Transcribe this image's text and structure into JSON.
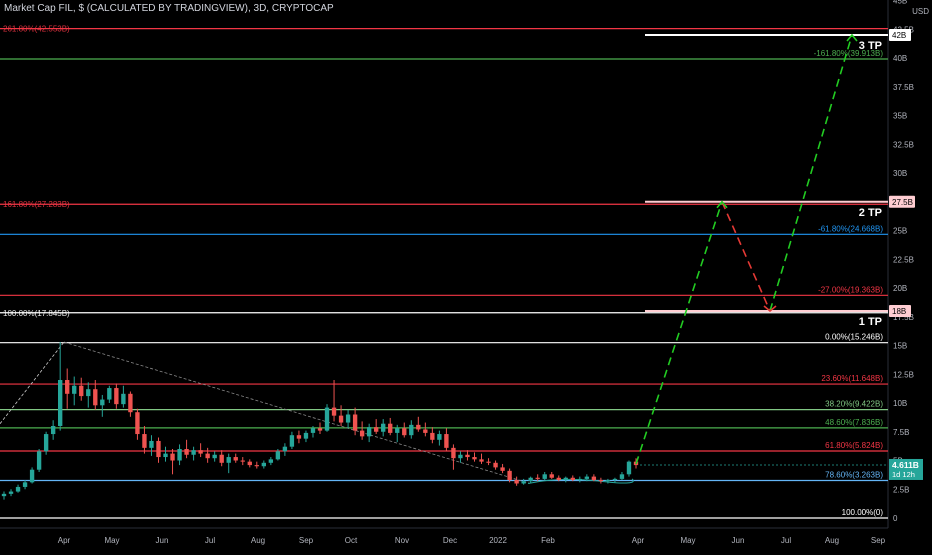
{
  "header": {
    "title": "Market Cap FIL, $ (CALCULATED BY TRADINGVIEW), 3D, CRYPTOCAP",
    "currency": "USD"
  },
  "colors": {
    "bg": "#000000",
    "up": "#26a69a",
    "down": "#ef5350",
    "green_path": "#22cc22",
    "red_path": "#e53935",
    "white": "#ffffff",
    "axis_text": "#b2b5be",
    "price_badge": "#26a69a"
  },
  "chart_data": {
    "type": "candlestick",
    "y_axis": {
      "unit": "B",
      "ticks": [
        0,
        2.5,
        5,
        7.5,
        10,
        12.5,
        15,
        17.5,
        20,
        22.5,
        25,
        27.5,
        30,
        32.5,
        35,
        37.5,
        40,
        42.5,
        45
      ],
      "labels": [
        "0",
        "2.5B",
        "5B",
        "7.5B",
        "10B",
        "12.5B",
        "15B",
        "17.5B",
        "20B",
        "22.5B",
        "25B",
        "27.5B",
        "30B",
        "32.5B",
        "35B",
        "37.5B",
        "40B",
        "42.5B",
        "45B"
      ]
    },
    "x_axis": {
      "labels": [
        "Apr",
        "May",
        "Jun",
        "Jul",
        "Aug",
        "Sep",
        "Oct",
        "Nov",
        "Dec",
        "2022",
        "Feb",
        "Apr",
        "May",
        "Jun",
        "Jul",
        "Aug",
        "Sep"
      ]
    },
    "candles": [
      [
        1.9,
        2.3,
        1.6,
        2.1
      ],
      [
        2.1,
        2.5,
        1.9,
        2.3
      ],
      [
        2.3,
        2.9,
        2.2,
        2.7
      ],
      [
        2.7,
        3.3,
        2.5,
        3.1
      ],
      [
        3.1,
        4.4,
        3.0,
        4.2
      ],
      [
        4.2,
        6.0,
        4.0,
        5.8
      ],
      [
        5.8,
        7.5,
        5.5,
        7.3
      ],
      [
        7.3,
        8.5,
        6.8,
        8.0
      ],
      [
        8.0,
        15.3,
        7.6,
        12.0
      ],
      [
        12.0,
        13.0,
        9.5,
        10.8
      ],
      [
        10.8,
        12.3,
        9.8,
        11.5
      ],
      [
        11.5,
        12.2,
        10.2,
        10.6
      ],
      [
        10.6,
        11.8,
        9.6,
        11.2
      ],
      [
        11.2,
        12.0,
        9.4,
        9.8
      ],
      [
        9.8,
        10.7,
        8.8,
        10.3
      ],
      [
        10.3,
        11.5,
        10.0,
        11.3
      ],
      [
        11.3,
        11.7,
        9.5,
        9.9
      ],
      [
        9.9,
        11.5,
        9.6,
        10.8
      ],
      [
        10.8,
        11.0,
        8.8,
        9.2
      ],
      [
        9.2,
        9.5,
        6.8,
        7.3
      ],
      [
        7.3,
        8.0,
        5.6,
        6.1
      ],
      [
        6.1,
        7.2,
        5.4,
        6.7
      ],
      [
        6.7,
        7.0,
        4.8,
        5.3
      ],
      [
        5.3,
        6.2,
        4.9,
        5.6
      ],
      [
        5.6,
        6.0,
        3.8,
        5.0
      ],
      [
        5.0,
        6.4,
        4.6,
        6.0
      ],
      [
        6.0,
        6.8,
        5.2,
        5.5
      ],
      [
        5.5,
        6.2,
        5.0,
        5.9
      ],
      [
        5.9,
        6.5,
        5.3,
        5.6
      ],
      [
        5.6,
        6.1,
        4.8,
        5.2
      ],
      [
        5.2,
        5.8,
        4.9,
        5.5
      ],
      [
        5.5,
        5.9,
        4.5,
        4.8
      ],
      [
        4.8,
        5.6,
        3.9,
        5.3
      ],
      [
        5.3,
        5.6,
        4.8,
        5.0
      ],
      [
        5.0,
        5.3,
        4.6,
        4.9
      ],
      [
        4.9,
        5.1,
        4.4,
        4.6
      ],
      [
        4.6,
        4.9,
        4.3,
        4.5
      ],
      [
        4.5,
        5.0,
        4.3,
        4.8
      ],
      [
        4.8,
        5.3,
        4.6,
        5.1
      ],
      [
        5.1,
        6.0,
        5.0,
        5.8
      ],
      [
        5.8,
        6.5,
        5.4,
        6.2
      ],
      [
        6.2,
        7.5,
        6.0,
        7.2
      ],
      [
        7.2,
        7.6,
        6.5,
        6.9
      ],
      [
        6.9,
        7.6,
        6.6,
        7.4
      ],
      [
        7.4,
        8.0,
        7.0,
        7.8
      ],
      [
        7.8,
        8.3,
        7.3,
        7.6
      ],
      [
        7.6,
        9.9,
        7.5,
        9.6
      ],
      [
        9.6,
        12.0,
        8.4,
        8.9
      ],
      [
        8.9,
        9.8,
        8.0,
        8.3
      ],
      [
        8.3,
        9.4,
        7.8,
        9.0
      ],
      [
        9.0,
        9.6,
        7.2,
        7.6
      ],
      [
        7.6,
        8.4,
        6.8,
        7.1
      ],
      [
        7.1,
        8.2,
        6.6,
        7.9
      ],
      [
        7.9,
        8.6,
        7.3,
        7.5
      ],
      [
        7.5,
        8.6,
        7.1,
        8.2
      ],
      [
        8.2,
        8.7,
        7.2,
        7.4
      ],
      [
        7.4,
        8.1,
        6.6,
        7.8
      ],
      [
        7.8,
        8.3,
        7.0,
        7.2
      ],
      [
        7.2,
        8.5,
        6.9,
        8.1
      ],
      [
        8.1,
        8.8,
        7.5,
        7.7
      ],
      [
        7.7,
        8.3,
        7.1,
        7.4
      ],
      [
        7.4,
        7.9,
        6.5,
        6.8
      ],
      [
        6.8,
        7.6,
        6.3,
        7.3
      ],
      [
        7.3,
        7.8,
        5.8,
        6.1
      ],
      [
        6.1,
        6.4,
        4.2,
        5.2
      ],
      [
        5.2,
        5.8,
        4.8,
        5.5
      ],
      [
        5.5,
        5.9,
        5.0,
        5.3
      ],
      [
        5.3,
        5.7,
        4.9,
        5.1
      ],
      [
        5.1,
        5.6,
        4.7,
        4.9
      ],
      [
        4.9,
        5.2,
        4.6,
        4.8
      ],
      [
        4.8,
        5.0,
        4.2,
        4.4
      ],
      [
        4.4,
        4.7,
        3.9,
        4.1
      ],
      [
        4.1,
        4.3,
        3.1,
        3.3
      ],
      [
        3.3,
        3.6,
        2.8,
        3.0
      ],
      [
        3.0,
        3.4,
        2.9,
        3.2
      ],
      [
        3.2,
        3.6,
        3.0,
        3.5
      ],
      [
        3.5,
        3.8,
        3.2,
        3.4
      ],
      [
        3.4,
        4.0,
        3.3,
        3.8
      ],
      [
        3.8,
        4.0,
        3.4,
        3.5
      ],
      [
        3.5,
        3.7,
        3.2,
        3.3
      ],
      [
        3.3,
        3.6,
        3.1,
        3.5
      ],
      [
        3.5,
        3.7,
        3.2,
        3.3
      ],
      [
        3.3,
        3.6,
        3.1,
        3.4
      ],
      [
        3.4,
        3.8,
        3.2,
        3.6
      ],
      [
        3.6,
        3.8,
        3.2,
        3.3
      ],
      [
        3.3,
        3.5,
        3.0,
        3.2
      ],
      [
        3.2,
        3.4,
        3.0,
        3.3
      ],
      [
        3.3,
        3.5,
        3.1,
        3.4
      ],
      [
        3.4,
        4.0,
        3.3,
        3.8
      ],
      [
        3.8,
        5.0,
        3.6,
        4.9
      ],
      [
        4.9,
        5.2,
        4.3,
        4.6
      ]
    ],
    "fib_levels_left": [
      {
        "label": "261.80%(42.553B)",
        "value": 42.553,
        "color": "#f23645"
      },
      {
        "label": "161.80%(27.283B)",
        "value": 27.283,
        "color": "#f23645"
      },
      {
        "label": "100.00%(17.845B)",
        "value": 17.845,
        "color": "#ffffff"
      }
    ],
    "fib_levels_right": [
      {
        "label": "-161.80%(39.913B)",
        "value": 39.913,
        "color": "#4caf50"
      },
      {
        "label": "-61.80%(24.668B)",
        "value": 24.668,
        "color": "#2196f3"
      },
      {
        "label": "-27.00%(19.363B)",
        "value": 19.363,
        "color": "#f23645"
      },
      {
        "label": "0.00%(15.246B)",
        "value": 15.246,
        "color": "#ffffff"
      },
      {
        "label": "23.60%(11.648B)",
        "value": 11.648,
        "color": "#f23645"
      },
      {
        "label": "38.20%(9.422B)",
        "value": 9.422,
        "color": "#81c784"
      },
      {
        "label": "48.60%(7.836B)",
        "value": 7.836,
        "color": "#4caf50"
      },
      {
        "label": "61.80%(5.824B)",
        "value": 5.824,
        "color": "#f23645"
      },
      {
        "label": "78.60%(3.263B)",
        "value": 3.263,
        "color": "#64b5f6"
      },
      {
        "label": "100.00%(0)",
        "value": 0,
        "color": "#ffffff"
      }
    ],
    "targets": [
      {
        "label": "3 TP",
        "value": 42,
        "badge": "42B"
      },
      {
        "label": "2 TP",
        "value": 27.5,
        "badge": "27.5B"
      },
      {
        "label": "1 TP",
        "value": 18,
        "badge": "18B"
      }
    ],
    "current_price": {
      "value": 4.611,
      "label": "4.611B",
      "countdown": "1d 12h"
    }
  }
}
